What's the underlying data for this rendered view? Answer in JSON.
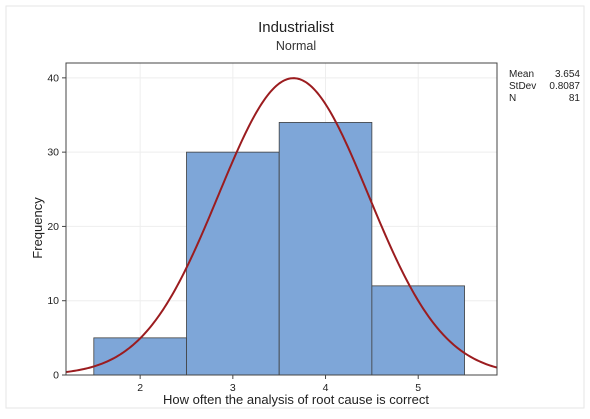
{
  "chart_data": {
    "type": "bar",
    "title": "Industrialist",
    "subtitle": "Normal",
    "xlabel": "How often the analysis of root cause is correct",
    "ylabel": "Frequency",
    "xlim": [
      1.2,
      5.85
    ],
    "ylim": [
      0,
      42
    ],
    "x_ticks": [
      2,
      3,
      4,
      5
    ],
    "y_ticks": [
      0,
      10,
      20,
      30,
      40
    ],
    "bins": [
      {
        "center": 2,
        "x0": 1.5,
        "x1": 2.5,
        "count": 5
      },
      {
        "center": 3,
        "x0": 2.5,
        "x1": 3.5,
        "count": 30
      },
      {
        "center": 4,
        "x0": 3.5,
        "x1": 4.5,
        "count": 34
      },
      {
        "center": 5,
        "x0": 4.5,
        "x1": 5.5,
        "count": 12
      }
    ],
    "fit": {
      "distribution": "Normal",
      "mean": 3.654,
      "stdev": 0.8087,
      "n": 81,
      "bin_width": 1
    },
    "stats": [
      {
        "label": "Mean",
        "value": "3.654"
      },
      {
        "label": "StDev",
        "value": "0.8087"
      },
      {
        "label": "N",
        "value": "81"
      }
    ],
    "grid": true,
    "colors": {
      "bar_fill": "#7ea6d8",
      "bar_stroke": "#3f3f3f",
      "curve": "#9b1c1f",
      "grid": "#eeeeee",
      "axis": "#444444",
      "text": "#222222"
    }
  }
}
